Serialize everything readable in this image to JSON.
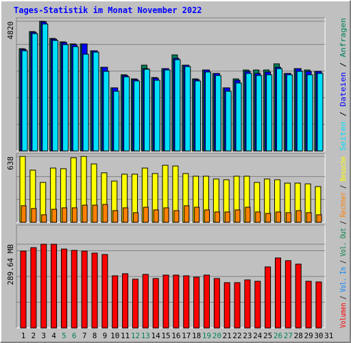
{
  "chart_data": {
    "type": "bar",
    "title": "Tages-Statistik im Monat November 2022",
    "categories": [
      "1",
      "2",
      "3",
      "4",
      "5",
      "6",
      "7",
      "8",
      "9",
      "10",
      "11",
      "12",
      "13",
      "14",
      "15",
      "16",
      "17",
      "18",
      "19",
      "20",
      "21",
      "22",
      "23",
      "24",
      "25",
      "26",
      "27",
      "28",
      "29",
      "30",
      "31"
    ],
    "category_colors": [
      "#000000",
      "#000000",
      "#000000",
      "#000000",
      "#00805C",
      "#00805C",
      "#000000",
      "#000000",
      "#000000",
      "#000000",
      "#000000",
      "#00805C",
      "#00805C",
      "#000000",
      "#000000",
      "#000000",
      "#000000",
      "#000000",
      "#00805C",
      "#00805C",
      "#000000",
      "#000000",
      "#000000",
      "#000000",
      "#000000",
      "#00805C",
      "#00805C",
      "#000000",
      "#000000",
      "#000000",
      "#000000"
    ],
    "legend_separator": " / ",
    "panels": [
      {
        "ylim": [
          0,
          4820
        ],
        "yticks": [
          4820
        ],
        "series": [
          {
            "name": "Anfragen",
            "color": "#00805C",
            "values": [
              3800,
              4437,
              4820,
              4182,
              4055,
              3978,
              3978,
              3723,
              3111,
              2346,
              2831,
              2678,
              3188,
              2729,
              3060,
              3570,
              3188,
              2678,
              3009,
              2882,
              2346,
              2678,
              3009,
              3009,
              3009,
              3239,
              2882,
              3060,
              3009,
              2958,
              null
            ]
          },
          {
            "name": "Dateien",
            "color": "#0000FF",
            "values": [
              3774,
              4412,
              4794,
              4157,
              4029,
              3953,
              3978,
              3723,
              3111,
              2346,
              2805,
              2652,
              3060,
              2703,
              3060,
              3443,
              3188,
              2652,
              3009,
              2882,
              2346,
              2627,
              2958,
              2882,
              2933,
              3111,
              2882,
              3060,
              2958,
              2958,
              null
            ]
          },
          {
            "name": "Seiten",
            "color": "#00E0FF",
            "values": [
              3723,
              4361,
              4718,
              4106,
              3953,
              3876,
              3596,
              3672,
              2958,
              2219,
              2754,
              2601,
              3035,
              2627,
              3009,
              3392,
              3137,
              2601,
              2933,
              2805,
              2219,
              2525,
              2882,
              2805,
              2831,
              3060,
              2831,
              2958,
              2831,
              2882,
              null
            ]
          }
        ]
      },
      {
        "ylim": [
          0,
          638
        ],
        "yticks": [
          638
        ],
        "series": [
          {
            "name": "Besuche",
            "color": "#FFFF00",
            "values": [
              638,
              505,
              386,
              525,
              519,
              625,
              638,
              565,
              479,
              399,
              466,
              466,
              525,
              472,
              552,
              545,
              472,
              446,
              446,
              419,
              412,
              446,
              446,
              386,
              419,
              412,
              379,
              379,
              372,
              346,
              null
            ]
          },
          {
            "name": "Rechner",
            "color": "#FF8000",
            "values": [
              160,
              133,
              73,
              126,
              140,
              140,
              166,
              166,
              173,
              113,
              140,
              93,
              146,
              120,
              140,
              113,
              160,
              146,
              120,
              100,
              100,
              120,
              146,
              100,
              86,
              100,
              93,
              113,
              93,
              73,
              null
            ]
          }
        ]
      },
      {
        "ylim": [
          0,
          289.64
        ],
        "yticks": [
          {
            "value": 289.64,
            "label": "289.64 MB"
          }
        ],
        "series": [
          {
            "name": "Volumen",
            "color": "#FF0000",
            "values": [
              265.9,
              277.8,
              289.6,
              289.6,
              273.0,
              268.3,
              265.9,
              258.8,
              254.0,
              180.4,
              187.6,
              168.6,
              185.2,
              170.9,
              182.8,
              182.8,
              180.4,
              175.7,
              182.8,
              170.9,
              156.7,
              156.7,
              166.2,
              161.4,
              211.3,
              242.1,
              232.7,
              220.8,
              161.4,
              159.1,
              null
            ]
          }
        ],
        "legend_only": [
          {
            "name": "Vol. In",
            "color": "#0080FF"
          },
          {
            "name": "Vol. Out",
            "color": "#008040"
          }
        ]
      }
    ]
  }
}
